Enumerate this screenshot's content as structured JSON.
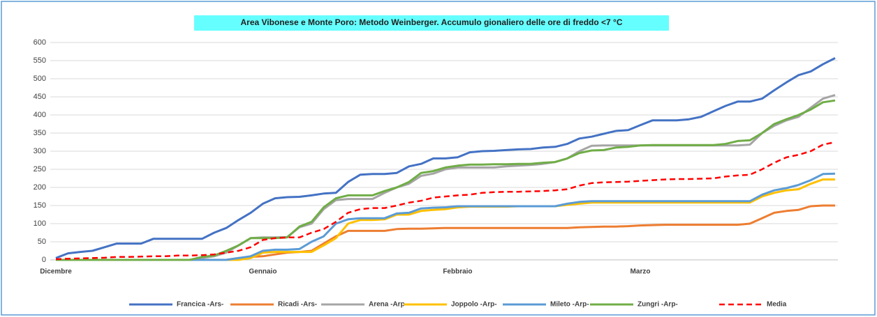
{
  "chart_data": {
    "type": "line",
    "title": "Area Vibonese e Monte Poro: Metodo Weinberger. Accumulo gionaliero delle ore di freddo  <7 °C",
    "categories": [
      "Dicembre",
      null,
      null,
      null,
      null,
      null,
      null,
      null,
      null,
      null,
      null,
      null,
      null,
      null,
      null,
      null,
      null,
      "Gennaio",
      null,
      null,
      null,
      null,
      null,
      null,
      null,
      null,
      null,
      null,
      null,
      null,
      null,
      null,
      null,
      "Febbraio",
      null,
      null,
      null,
      null,
      null,
      null,
      null,
      null,
      null,
      null,
      null,
      null,
      null,
      null,
      "Marzo",
      null,
      null,
      null,
      null,
      null,
      null,
      null,
      null,
      null,
      null,
      null,
      null,
      null,
      null,
      null,
      null
    ],
    "ylim": [
      0,
      600
    ],
    "yticks": [
      0,
      50,
      100,
      150,
      200,
      250,
      300,
      350,
      400,
      450,
      500,
      550,
      600
    ],
    "grid": true,
    "legend": "bottom",
    "series": [
      {
        "name": "Francica -Ars-",
        "color": "#4472c4",
        "values": [
          5,
          18,
          22,
          25,
          35,
          45,
          45,
          45,
          58,
          58,
          58,
          58,
          58,
          75,
          88,
          110,
          130,
          155,
          170,
          173,
          174,
          178,
          183,
          185,
          215,
          235,
          237,
          237,
          240,
          258,
          265,
          280,
          280,
          283,
          297,
          300,
          301,
          303,
          305,
          306,
          310,
          312,
          320,
          335,
          340,
          348,
          356,
          358,
          372,
          385,
          385,
          385,
          388,
          395,
          410,
          425,
          437,
          437,
          445,
          468,
          490,
          510,
          520,
          540,
          557
        ]
      },
      {
        "name": "Ricadi -Ars-",
        "color": "#ed7d31",
        "values": [
          0,
          0,
          0,
          0,
          0,
          0,
          0,
          0,
          0,
          0,
          0,
          0,
          0,
          0,
          0,
          5,
          8,
          10,
          15,
          20,
          22,
          25,
          45,
          65,
          80,
          80,
          80,
          80,
          85,
          86,
          86,
          87,
          88,
          88,
          88,
          88,
          88,
          88,
          88,
          88,
          88,
          88,
          88,
          90,
          91,
          92,
          92,
          93,
          95,
          96,
          97,
          97,
          97,
          97,
          97,
          97,
          97,
          100,
          115,
          130,
          135,
          138,
          148,
          150,
          150
        ]
      },
      {
        "name": "Arena -Arp-",
        "color": "#a5a5a5",
        "values": [
          0,
          0,
          0,
          0,
          0,
          0,
          0,
          0,
          0,
          0,
          0,
          0,
          5,
          10,
          20,
          40,
          60,
          62,
          62,
          63,
          90,
          100,
          140,
          165,
          168,
          168,
          168,
          185,
          200,
          210,
          232,
          238,
          250,
          255,
          255,
          255,
          255,
          258,
          260,
          262,
          265,
          270,
          280,
          300,
          315,
          316,
          316,
          316,
          316,
          316,
          316,
          316,
          316,
          316,
          316,
          316,
          316,
          318,
          350,
          370,
          385,
          395,
          420,
          445,
          455
        ]
      },
      {
        "name": "Joppolo  -Arp-",
        "color": "#ffc000",
        "values": [
          0,
          0,
          0,
          0,
          0,
          0,
          0,
          0,
          0,
          0,
          0,
          0,
          0,
          0,
          0,
          0,
          5,
          20,
          22,
          22,
          22,
          22,
          40,
          60,
          100,
          110,
          110,
          112,
          125,
          125,
          135,
          138,
          140,
          145,
          147,
          147,
          147,
          147,
          148,
          148,
          148,
          148,
          152,
          155,
          158,
          158,
          158,
          158,
          158,
          158,
          158,
          158,
          158,
          158,
          158,
          158,
          158,
          158,
          175,
          185,
          192,
          195,
          210,
          222,
          222
        ]
      },
      {
        "name": "Mileto -Arp-",
        "color": "#5b9bd5",
        "values": [
          0,
          0,
          0,
          0,
          0,
          0,
          0,
          0,
          0,
          0,
          0,
          0,
          0,
          0,
          0,
          5,
          10,
          25,
          28,
          28,
          30,
          50,
          65,
          100,
          112,
          115,
          115,
          115,
          128,
          130,
          142,
          144,
          145,
          148,
          148,
          148,
          148,
          148,
          148,
          148,
          148,
          148,
          155,
          160,
          162,
          162,
          162,
          162,
          162,
          162,
          162,
          162,
          162,
          162,
          162,
          162,
          162,
          162,
          180,
          192,
          198,
          207,
          220,
          237,
          238
        ]
      },
      {
        "name": "Zungri -Arp-",
        "color": "#70ad47",
        "values": [
          0,
          0,
          0,
          0,
          0,
          0,
          0,
          0,
          0,
          0,
          0,
          0,
          8,
          12,
          25,
          40,
          60,
          60,
          60,
          62,
          92,
          105,
          145,
          170,
          178,
          178,
          178,
          190,
          200,
          215,
          240,
          245,
          255,
          260,
          263,
          263,
          264,
          264,
          265,
          265,
          268,
          270,
          280,
          295,
          302,
          303,
          310,
          312,
          316,
          317,
          317,
          317,
          317,
          317,
          317,
          320,
          328,
          330,
          350,
          375,
          388,
          400,
          415,
          435,
          440
        ]
      },
      {
        "name": "Media",
        "color": "#ff0000",
        "dash": true,
        "values": [
          2,
          3,
          4,
          5,
          6,
          8,
          8,
          9,
          10,
          10,
          12,
          12,
          13,
          15,
          20,
          25,
          35,
          55,
          60,
          62,
          62,
          75,
          85,
          105,
          130,
          140,
          143,
          143,
          150,
          158,
          163,
          172,
          175,
          178,
          180,
          185,
          187,
          188,
          188,
          189,
          190,
          192,
          195,
          205,
          212,
          214,
          215,
          216,
          218,
          220,
          222,
          223,
          223,
          224,
          225,
          230,
          233,
          235,
          250,
          268,
          283,
          290,
          300,
          318,
          325
        ]
      }
    ]
  }
}
